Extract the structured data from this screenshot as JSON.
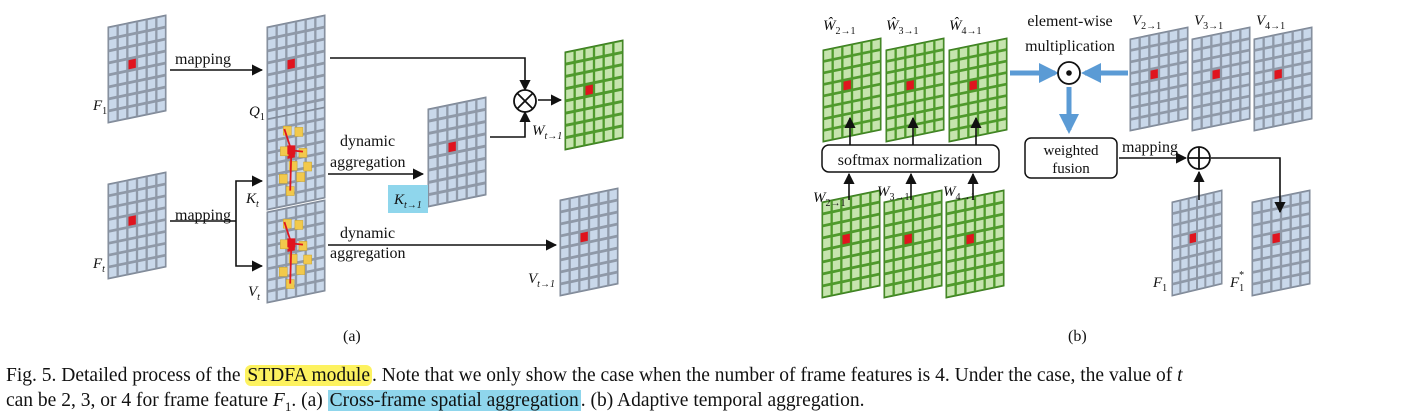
{
  "panel_a": {
    "label": "(a)",
    "mapping_top": "mapping",
    "mapping_bottom": "mapping",
    "dynamic_top": "dynamic",
    "aggregation_top": "aggregation",
    "dynamic_bottom": "dynamic",
    "aggregation_bottom": "aggregation",
    "F1": "F",
    "F1_sub": "1",
    "Ft": "F",
    "Ft_sub": "t",
    "Q1": "Q",
    "Q1_sub": "1",
    "Kt": "K",
    "Kt_sub": "t",
    "Vt": "V",
    "Vt_sub": "t",
    "Kt1": "K",
    "Kt1_sub": "t→1",
    "Vt1": "V",
    "Vt1_sub": "t→1",
    "Wt1": "W",
    "Wt1_sub": "t→1"
  },
  "panel_b": {
    "label": "(b)",
    "elementwise_1": "element-wise",
    "elementwise_2": "multiplication",
    "softmax": "softmax normalization",
    "weighted_1": "weighted",
    "weighted_2": "fusion",
    "mapping": "mapping",
    "What2": "Ŵ",
    "What2_sub": "2→1",
    "What3": "Ŵ",
    "What3_sub": "3→1",
    "What4": "Ŵ",
    "What4_sub": "4→1",
    "W2": "W",
    "W2_sub": "2→1",
    "W3": "W",
    "W3_sub": "3→1",
    "W4": "W",
    "W4_sub": "4→1",
    "V2": "V",
    "V2_sub": "2→1",
    "V3": "V",
    "V3_sub": "3→1",
    "V4": "V",
    "V4_sub": "4→1",
    "F1": "F",
    "F1_sub": "1",
    "F1s": "F",
    "F1s_sub": "1",
    "F1s_sup": "*"
  },
  "caption": {
    "fig": "Fig. 5.",
    "pre": " Detailed process of the ",
    "hl1": "STDFA module",
    "mid1": ". Note that we only show the case when the number of frame features is 4. Under the case, the value of ",
    "t": "t",
    "line2_pre": "can be 2, 3, or 4 for frame feature ",
    "F": "F",
    "F_sub": "1",
    "mid2": ". (a) ",
    "hl2": "Cross-frame spatial aggregation",
    "end": ". (b) Adaptive temporal aggregation."
  },
  "colors": {
    "grid_fill": "#c9d8ea",
    "grid_line": "#8f99a8",
    "green_fill": "#7dbd57",
    "green_cell": "#c6e4ae",
    "red": "#e0141e",
    "arrow_blue": "#5b9bd5",
    "highlight_blue": "#8fd6ec",
    "highlight_yellow": "#fdf25f"
  }
}
